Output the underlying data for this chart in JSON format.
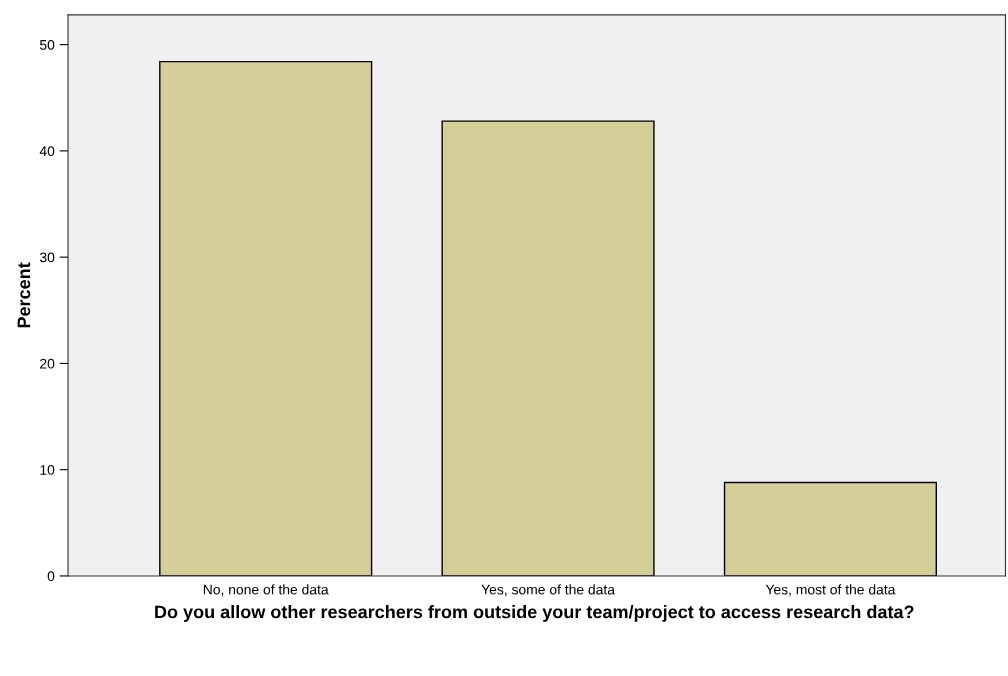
{
  "chart_data": {
    "type": "bar",
    "categories": [
      "No, none of the data",
      "Yes, some of the data",
      "Yes, most of the data"
    ],
    "values": [
      48.4,
      42.8,
      8.8
    ],
    "color": "#d3ce97",
    "xlabel": "Do you allow other researchers from outside your team/project to access research data?",
    "ylabel": "Percent",
    "ylim": [
      0,
      52.8
    ],
    "yticks": [
      0,
      10,
      20,
      30,
      40,
      50
    ],
    "grid": false,
    "legend": false
  }
}
